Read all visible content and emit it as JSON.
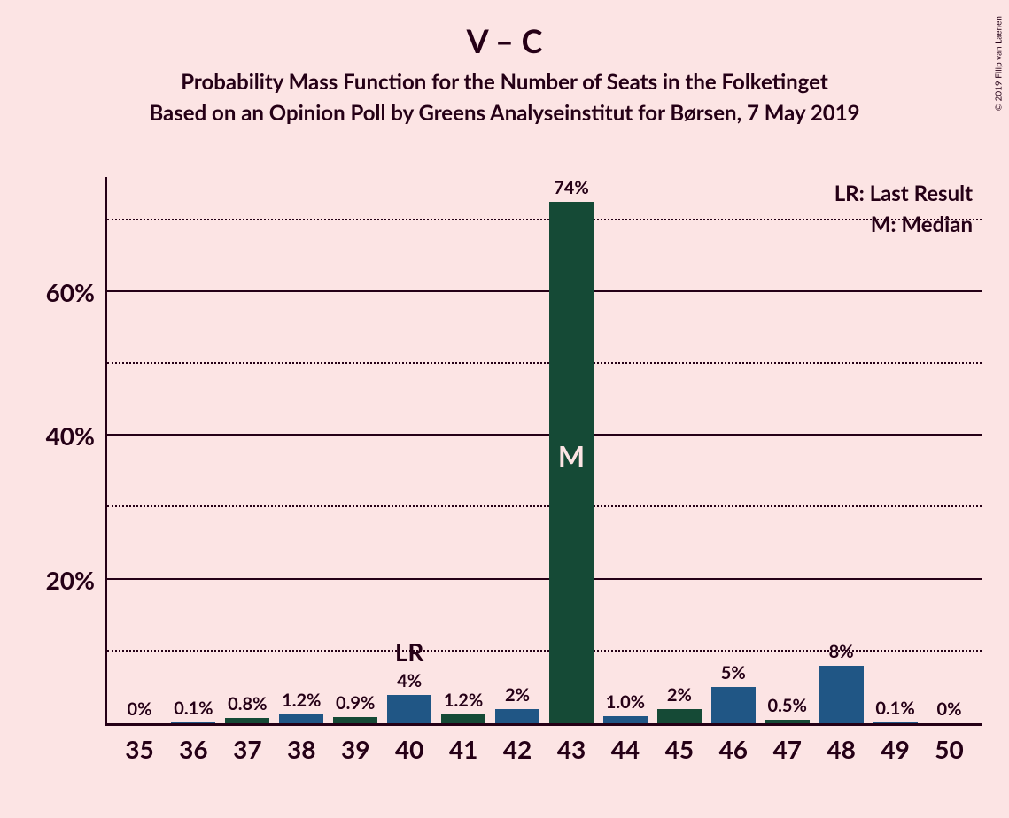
{
  "chart": {
    "type": "bar",
    "title": "V – C",
    "subtitle1": "Probability Mass Function for the Number of Seats in the Folketinget",
    "subtitle2": "Based on an Opinion Poll by Greens Analyseinstitut for Børsen, 7 May 2019",
    "copyright": "© 2019 Filip van Laenen",
    "background_color": "#fce4e4",
    "text_color": "#250016",
    "axis_color": "#250016",
    "grid_color": "#250016",
    "median_text_color": "#fce4e4",
    "title_fontsize": 36,
    "subtitle_fontsize": 24,
    "tick_fontsize": 28,
    "value_label_fontsize": 20,
    "legend_fontsize": 24,
    "ylim": [
      0,
      76
    ],
    "y_gridlines": [
      {
        "value": 10,
        "label": "",
        "major": false
      },
      {
        "value": 20,
        "label": "20%",
        "major": true
      },
      {
        "value": 30,
        "label": "",
        "major": false
      },
      {
        "value": 40,
        "label": "40%",
        "major": true
      },
      {
        "value": 50,
        "label": "",
        "major": false
      },
      {
        "value": 60,
        "label": "60%",
        "major": true
      },
      {
        "value": 70,
        "label": "",
        "major": false
      }
    ],
    "bar_colors": {
      "blue": "#205685",
      "green": "#154a36"
    },
    "legend": {
      "lr": "LR: Last Result",
      "m": "M: Median"
    },
    "lr_label": "LR",
    "median_label": "M",
    "bars": [
      {
        "x": "35",
        "value": 0,
        "label": "0%",
        "color": "blue",
        "lr": false,
        "median": false
      },
      {
        "x": "36",
        "value": 0.1,
        "label": "0.1%",
        "color": "blue",
        "lr": false,
        "median": false
      },
      {
        "x": "37",
        "value": 0.8,
        "label": "0.8%",
        "color": "green",
        "lr": false,
        "median": false
      },
      {
        "x": "38",
        "value": 1.2,
        "label": "1.2%",
        "color": "blue",
        "lr": false,
        "median": false
      },
      {
        "x": "39",
        "value": 0.9,
        "label": "0.9%",
        "color": "green",
        "lr": false,
        "median": false
      },
      {
        "x": "40",
        "value": 4,
        "label": "4%",
        "color": "blue",
        "lr": true,
        "median": false
      },
      {
        "x": "41",
        "value": 1.2,
        "label": "1.2%",
        "color": "green",
        "lr": false,
        "median": false
      },
      {
        "x": "42",
        "value": 2,
        "label": "2%",
        "color": "blue",
        "lr": false,
        "median": false
      },
      {
        "x": "43",
        "value": 74,
        "label": "74%",
        "color": "green",
        "lr": false,
        "median": true
      },
      {
        "x": "44",
        "value": 1.0,
        "label": "1.0%",
        "color": "blue",
        "lr": false,
        "median": false
      },
      {
        "x": "45",
        "value": 2,
        "label": "2%",
        "color": "green",
        "lr": false,
        "median": false
      },
      {
        "x": "46",
        "value": 5,
        "label": "5%",
        "color": "blue",
        "lr": false,
        "median": false
      },
      {
        "x": "47",
        "value": 0.5,
        "label": "0.5%",
        "color": "green",
        "lr": false,
        "median": false
      },
      {
        "x": "48",
        "value": 8,
        "label": "8%",
        "color": "blue",
        "lr": false,
        "median": false
      },
      {
        "x": "49",
        "value": 0.1,
        "label": "0.1%",
        "color": "blue",
        "lr": false,
        "median": false
      },
      {
        "x": "50",
        "value": 0,
        "label": "0%",
        "color": "blue",
        "lr": false,
        "median": false
      }
    ]
  }
}
